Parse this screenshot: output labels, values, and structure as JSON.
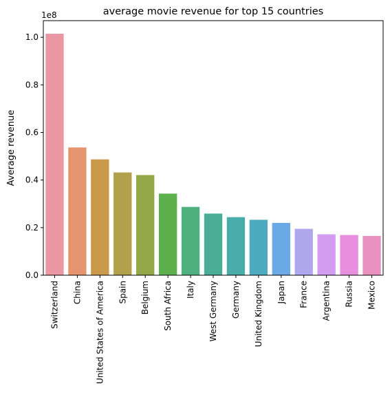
{
  "chart_data": {
    "type": "bar",
    "title": "average movie revenue for top 15 countries",
    "xlabel": "",
    "ylabel": "Average revenue",
    "offset_label": "1e8",
    "ylim": [
      0,
      1.07
    ],
    "yticks": [
      "0.0",
      "0.2",
      "0.4",
      "0.6",
      "0.8",
      "1.0"
    ],
    "grid": false,
    "categories": [
      "Switzerland",
      "China",
      "United States of America",
      "Spain",
      "Belgium",
      "South Africa",
      "Italy",
      "West Germany",
      "Germany",
      "United Kingdom",
      "Japan",
      "France",
      "Argentina",
      "Russia",
      "Mexico"
    ],
    "values": [
      1.015,
      0.537,
      0.487,
      0.432,
      0.421,
      0.343,
      0.287,
      0.259,
      0.244,
      0.233,
      0.22,
      0.195,
      0.172,
      0.169,
      0.165
    ],
    "colors": [
      "#ea96a3",
      "#e69470",
      "#c89a4a",
      "#b2a14a",
      "#94a84a",
      "#5cb14d",
      "#4fb07f",
      "#4aad98",
      "#4aaca9",
      "#4dabc0",
      "#6aa9e6",
      "#aea7ee",
      "#d39cf0",
      "#e78ede",
      "#e990bf"
    ]
  }
}
